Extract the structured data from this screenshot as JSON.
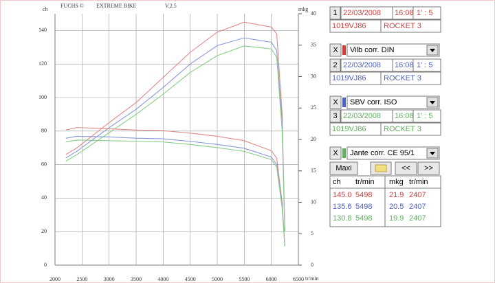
{
  "chart_data": {
    "type": "line",
    "header": [
      "FUCHS ©",
      "EXTREME BIKE",
      "V.2.5"
    ],
    "ylabel": "ch",
    "y2label": "mkg",
    "xlabel": "tr/min",
    "x": [
      2200,
      2407,
      3000,
      3500,
      4000,
      4500,
      5000,
      5498,
      6000,
      6100,
      6200,
      6250
    ],
    "series": [
      {
        "color": "#e08888",
        "values": [
          66,
          70,
          85,
          97,
          112,
          127,
          139,
          145,
          142,
          138,
          90,
          20
        ]
      },
      {
        "color": "#8898d8",
        "values": [
          64,
          68,
          82,
          93,
          106,
          120,
          131,
          135.6,
          133,
          128,
          85,
          20
        ]
      },
      {
        "color": "#88cc88",
        "values": [
          62,
          66,
          79,
          90,
          102,
          115,
          125,
          130.8,
          129,
          124,
          80,
          20
        ]
      },
      {
        "color": "#e08888",
        "axis": "y2",
        "values": [
          21.5,
          21.9,
          21.7,
          21.5,
          21.4,
          21,
          20.5,
          19.8,
          18.2,
          17,
          10,
          3
        ]
      },
      {
        "color": "#8898d8",
        "axis": "y2",
        "values": [
          20.2,
          20.5,
          20.4,
          20.2,
          20.1,
          19.7,
          19.2,
          18.6,
          17.2,
          16,
          9.5,
          3
        ]
      },
      {
        "color": "#88cc88",
        "axis": "y2",
        "values": [
          19.6,
          19.9,
          19.8,
          19.7,
          19.6,
          19.2,
          18.7,
          18.1,
          16.8,
          15.6,
          9,
          3
        ]
      }
    ],
    "xlim": [
      2000,
      6500
    ],
    "xticks": [
      2000,
      2500,
      3000,
      3500,
      4000,
      4500,
      5000,
      5500,
      6000,
      6500
    ],
    "ylim": [
      0,
      150
    ],
    "yticks": [
      0,
      20,
      40,
      60,
      80,
      100,
      120,
      140
    ],
    "y2lim": [
      0,
      40
    ],
    "y2ticks": [
      0,
      5,
      10,
      15,
      20,
      25,
      30,
      35,
      40
    ],
    "grid": true
  },
  "panel": {
    "runs": [
      {
        "number": "1",
        "date": "22/03/2008",
        "time": "16:08",
        "ratio": "1' : 5",
        "plate": "1019VJ86",
        "model": "ROCKET 3",
        "close": "X",
        "correction": "Vilb corr. DIN",
        "color": "#d04040"
      },
      {
        "number": "2",
        "date": "22/03/2008",
        "time": "16:08",
        "ratio": "1' : 5",
        "plate": "1019VJ86",
        "model": "ROCKET 3",
        "close": "X",
        "correction": "SBV corr. ISO",
        "color": "#5060c0"
      },
      {
        "number": "3",
        "date": "22/03/2008",
        "time": "16:08",
        "ratio": "1' : 5",
        "plate": "1019VJ86",
        "model": "ROCKET 3",
        "close": "X",
        "correction": "Jante corr. CE 95/1",
        "color": "#60b060"
      }
    ],
    "buttons": [
      "Maxi",
      "<<",
      ">>"
    ],
    "results": {
      "headers": [
        "ch",
        "tr/min",
        "mkg",
        "tr/min"
      ],
      "rows": [
        [
          "145.0",
          "5498",
          "21.9",
          "2407"
        ],
        [
          "135.6",
          "5498",
          "20.5",
          "2407"
        ],
        [
          "130.8",
          "5498",
          "19.9",
          "2407"
        ]
      ]
    }
  }
}
